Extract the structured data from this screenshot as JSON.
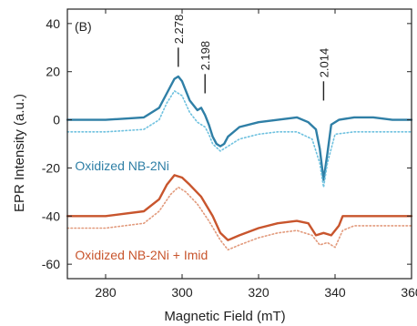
{
  "chart_data": {
    "type": "line",
    "panel_label": "(B)",
    "xlabel": "Magnetic Field (mT)",
    "ylabel": "EPR Intensity (a.u.)",
    "xlim": [
      270,
      360
    ],
    "ylim": [
      -66,
      46
    ],
    "x_ticks": [
      280,
      300,
      320,
      340,
      360
    ],
    "y_ticks": [
      -60,
      -40,
      -20,
      0,
      20,
      40
    ],
    "grid": false,
    "colors": {
      "blue": "#2f7fa6",
      "blue_light": "#6ec1df",
      "orange": "#c8552d",
      "orange_light": "#e29a7c",
      "axis": "#222222"
    },
    "annotations": [
      {
        "text": "2.278",
        "x": 299,
        "y_bottom": 22,
        "y_top": 30
      },
      {
        "text": "2.198",
        "x": 306,
        "y_bottom": 11,
        "y_top": 19
      },
      {
        "text": "2.014",
        "x": 337,
        "y_bottom": 8,
        "y_top": 16
      }
    ],
    "series_labels": [
      {
        "text": "Oxidized NB-2Ni",
        "x": 272,
        "y": -21,
        "color": "blue"
      },
      {
        "text": "Oxidized NB-2Ni + Imid",
        "x": 272,
        "y": -58,
        "color": "orange"
      }
    ],
    "series": [
      {
        "color": "blue",
        "style": "solid",
        "x": [
          270,
          280,
          290,
          294,
          296,
          298,
          299,
          300,
          302,
          304,
          305,
          306,
          307,
          308,
          309,
          310,
          311,
          312,
          315,
          320,
          325,
          330,
          333,
          335,
          336,
          337,
          338,
          339,
          341,
          345,
          350,
          355,
          360
        ],
        "y": [
          0,
          0,
          1,
          5,
          11,
          17,
          18,
          16,
          8,
          4,
          5,
          2,
          -2,
          -7,
          -10,
          -11,
          -10,
          -7,
          -3,
          -1,
          0,
          1,
          -1,
          -4,
          -12,
          -25,
          -14,
          -2,
          0,
          1,
          1,
          0,
          0
        ]
      },
      {
        "color": "blue_light",
        "style": "dotted",
        "x": [
          270,
          280,
          290,
          294,
          296,
          298,
          300,
          302,
          304,
          306,
          307,
          308,
          310,
          312,
          315,
          320,
          325,
          330,
          334,
          336,
          337,
          338,
          340,
          345,
          350,
          360
        ],
        "y": [
          -5,
          -5,
          -4,
          0,
          7,
          12,
          10,
          3,
          -1,
          -3,
          -6,
          -10,
          -13,
          -11,
          -8,
          -6,
          -5,
          -5,
          -8,
          -18,
          -28,
          -18,
          -6,
          -5,
          -5,
          -5
        ]
      },
      {
        "color": "orange",
        "style": "solid",
        "x": [
          270,
          280,
          290,
          294,
          296,
          298,
          300,
          302,
          305,
          308,
          310,
          312,
          315,
          320,
          325,
          330,
          333,
          335,
          337,
          339,
          341,
          342,
          345,
          350,
          360
        ],
        "y": [
          -40,
          -40,
          -38,
          -33,
          -27,
          -23,
          -24,
          -27,
          -32,
          -40,
          -47,
          -50,
          -48,
          -45,
          -43,
          -42,
          -43,
          -48,
          -47,
          -48,
          -44,
          -40,
          -40,
          -40,
          -40
        ]
      },
      {
        "color": "orange_light",
        "style": "dotted",
        "x": [
          270,
          280,
          290,
          294,
          297,
          299,
          301,
          304,
          307,
          310,
          312,
          315,
          320,
          325,
          330,
          334,
          336,
          338,
          340,
          342,
          345,
          350,
          360
        ],
        "y": [
          -45,
          -45,
          -43,
          -38,
          -31,
          -28,
          -30,
          -35,
          -42,
          -50,
          -54,
          -52,
          -49,
          -47,
          -46,
          -48,
          -52,
          -51,
          -53,
          -46,
          -44,
          -44,
          -44
        ]
      }
    ]
  }
}
